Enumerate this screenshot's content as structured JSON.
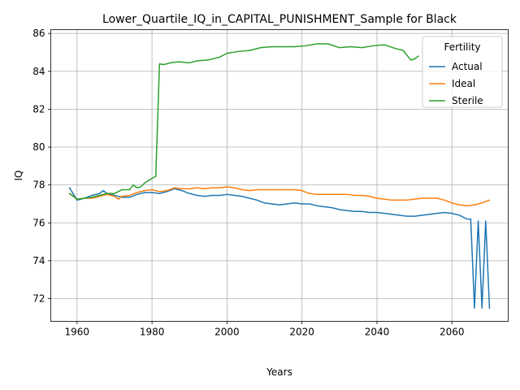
{
  "chart_data": {
    "type": "line",
    "title": "Lower_Quartile_IQ_in_CAPITAL_PUNISHMENT_Sample for Black",
    "xlabel": "Years",
    "ylabel": "IQ",
    "xlim": [
      1953,
      2075
    ],
    "ylim": [
      70.8,
      86.2
    ],
    "xticks": [
      1960,
      1980,
      2000,
      2020,
      2040,
      2060
    ],
    "yticks": [
      72,
      74,
      76,
      78,
      80,
      82,
      84,
      86
    ],
    "grid": true,
    "legend": {
      "title": "Fertility",
      "placement": "top-right"
    },
    "series": [
      {
        "name": "Actual",
        "color": "#1f77b4",
        "x": [
          1958,
          1960,
          1962,
          1964,
          1966,
          1967,
          1968,
          1970,
          1972,
          1974,
          1976,
          1978,
          1980,
          1982,
          1984,
          1986,
          1988,
          1990,
          1992,
          1994,
          1996,
          1998,
          2000,
          2002,
          2004,
          2006,
          2008,
          2010,
          2012,
          2014,
          2016,
          2018,
          2020,
          2022,
          2024,
          2026,
          2028,
          2030,
          2032,
          2034,
          2036,
          2038,
          2040,
          2042,
          2044,
          2046,
          2048,
          2050,
          2052,
          2054,
          2056,
          2058,
          2060,
          2062,
          2064,
          2065,
          2066,
          2067,
          2068,
          2069,
          2070
        ],
        "values": [
          77.85,
          77.2,
          77.3,
          77.45,
          77.55,
          77.7,
          77.55,
          77.45,
          77.35,
          77.35,
          77.5,
          77.6,
          77.6,
          77.55,
          77.65,
          77.8,
          77.7,
          77.55,
          77.45,
          77.4,
          77.45,
          77.45,
          77.5,
          77.45,
          77.4,
          77.3,
          77.2,
          77.05,
          77.0,
          76.95,
          77.0,
          77.05,
          77.0,
          77.0,
          76.9,
          76.85,
          76.8,
          76.7,
          76.65,
          76.6,
          76.6,
          76.55,
          76.55,
          76.5,
          76.45,
          76.4,
          76.35,
          76.35,
          76.4,
          76.45,
          76.5,
          76.55,
          76.5,
          76.4,
          76.2,
          76.2,
          71.5,
          76.1,
          71.5,
          76.1,
          71.5
        ]
      },
      {
        "name": "Ideal",
        "color": "#ff7f0e",
        "x": [
          1958,
          1960,
          1962,
          1964,
          1966,
          1968,
          1970,
          1971,
          1972,
          1974,
          1976,
          1978,
          1980,
          1982,
          1984,
          1986,
          1988,
          1990,
          1992,
          1994,
          1996,
          1998,
          2000,
          2002,
          2004,
          2006,
          2008,
          2010,
          2012,
          2014,
          2016,
          2018,
          2020,
          2022,
          2024,
          2026,
          2028,
          2030,
          2032,
          2034,
          2036,
          2038,
          2040,
          2042,
          2044,
          2046,
          2048,
          2050,
          2052,
          2054,
          2056,
          2058,
          2060,
          2062,
          2064,
          2066,
          2068,
          2070
        ],
        "values": [
          77.55,
          77.25,
          77.3,
          77.3,
          77.4,
          77.5,
          77.4,
          77.25,
          77.4,
          77.45,
          77.6,
          77.7,
          77.75,
          77.65,
          77.7,
          77.85,
          77.8,
          77.8,
          77.85,
          77.8,
          77.85,
          77.85,
          77.9,
          77.85,
          77.75,
          77.7,
          77.75,
          77.75,
          77.75,
          77.75,
          77.75,
          77.75,
          77.7,
          77.55,
          77.5,
          77.5,
          77.5,
          77.5,
          77.5,
          77.45,
          77.45,
          77.4,
          77.3,
          77.25,
          77.2,
          77.2,
          77.2,
          77.25,
          77.3,
          77.3,
          77.3,
          77.2,
          77.05,
          76.95,
          76.9,
          76.95,
          77.05,
          77.2
        ]
      },
      {
        "name": "Sterile",
        "color": "#2ca02c",
        "x": [
          1958,
          1960,
          1962,
          1964,
          1966,
          1968,
          1970,
          1972,
          1974,
          1975,
          1976,
          1977,
          1978,
          1980,
          1981,
          1982,
          1983,
          1985,
          1987,
          1990,
          1992,
          1995,
          1998,
          2000,
          2003,
          2006,
          2009,
          2012,
          2015,
          2018,
          2021,
          2024,
          2027,
          2030,
          2033,
          2036,
          2039,
          2042,
          2045,
          2047,
          2049,
          2050,
          2051
        ],
        "values": [
          77.55,
          77.25,
          77.3,
          77.35,
          77.45,
          77.55,
          77.55,
          77.75,
          77.75,
          78.0,
          77.85,
          77.9,
          78.1,
          78.35,
          78.45,
          84.4,
          84.35,
          84.45,
          84.5,
          84.45,
          84.55,
          84.6,
          84.75,
          84.95,
          85.05,
          85.1,
          85.25,
          85.3,
          85.3,
          85.3,
          85.35,
          85.45,
          85.45,
          85.25,
          85.3,
          85.25,
          85.35,
          85.4,
          85.2,
          85.1,
          84.6,
          84.65,
          84.8
        ]
      }
    ]
  }
}
